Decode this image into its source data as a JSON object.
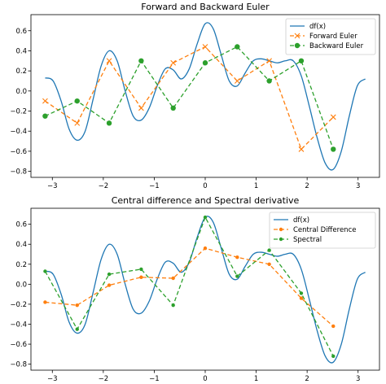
{
  "chart_data": [
    {
      "type": "line",
      "title": "Forward and Backward Euler",
      "xlabel": "",
      "ylabel": "",
      "xlim": [
        -3.42,
        3.42
      ],
      "ylim": [
        -0.86,
        0.76
      ],
      "xticks": [
        -3,
        -2,
        -1,
        0,
        1,
        2,
        3
      ],
      "yticks": [
        -0.8,
        -0.6,
        -0.4,
        -0.2,
        0.0,
        0.2,
        0.4,
        0.6
      ],
      "ytick_labels": [
        "−0.8",
        "−0.6",
        "−0.4",
        "−0.2",
        "0.0",
        "0.2",
        "0.4",
        "0.6"
      ],
      "xtick_labels": [
        "−3",
        "−2",
        "−1",
        "0",
        "1",
        "2",
        "3"
      ],
      "legend_position": "top-right",
      "grid": false,
      "series": [
        {
          "name": "df(x)",
          "color": "#1f77b4",
          "style": "solid",
          "marker": "none",
          "curve": true,
          "x": [
            -3.1416,
            -2.9845,
            -2.8274,
            -2.6704,
            -2.5133,
            -2.3562,
            -2.1991,
            -2.042,
            -1.885,
            -1.7279,
            -1.5708,
            -1.4137,
            -1.2566,
            -1.0996,
            -0.9425,
            -0.7854,
            -0.6283,
            -0.4712,
            -0.3142,
            -0.1571,
            0.0,
            0.1571,
            0.3142,
            0.4712,
            0.6283,
            0.7854,
            0.9425,
            1.0996,
            1.2566,
            1.4137,
            1.5708,
            1.7279,
            1.885,
            2.042,
            2.1991,
            2.3562,
            2.5133,
            2.6704,
            2.8274,
            2.9845,
            3.1416
          ],
          "y": [
            0.13,
            0.1,
            -0.1,
            -0.38,
            -0.49,
            -0.4,
            -0.08,
            0.25,
            0.4,
            0.3,
            0.0,
            -0.25,
            -0.29,
            -0.17,
            0.05,
            0.22,
            0.21,
            0.12,
            0.22,
            0.47,
            0.67,
            0.62,
            0.36,
            0.1,
            0.05,
            0.18,
            0.3,
            0.32,
            0.3,
            0.28,
            0.3,
            0.3,
            0.15,
            -0.15,
            -0.47,
            -0.72,
            -0.78,
            -0.6,
            -0.25,
            0.05,
            0.12
          ]
        },
        {
          "name": "Forward Euler",
          "color": "#ff7f0e",
          "style": "dashed",
          "marker": "x",
          "x": [
            -3.1416,
            -2.5133,
            -1.885,
            -1.2566,
            -0.6283,
            0.0,
            0.6283,
            1.2566,
            1.885,
            2.5133
          ],
          "y": [
            -0.1,
            -0.32,
            0.3,
            -0.17,
            0.28,
            0.44,
            0.1,
            0.3,
            -0.58,
            -0.26
          ]
        },
        {
          "name": "Backward Euler",
          "color": "#2ca02c",
          "style": "dashed",
          "marker": "circle",
          "x": [
            -3.1416,
            -2.5133,
            -1.885,
            -1.2566,
            -0.6283,
            0.0,
            0.6283,
            1.2566,
            1.885,
            2.5133
          ],
          "y": [
            -0.25,
            -0.1,
            -0.32,
            0.3,
            -0.17,
            0.28,
            0.44,
            0.1,
            0.3,
            -0.58
          ]
        }
      ]
    },
    {
      "type": "line",
      "title": "Central difference and Spectral derivative",
      "xlabel": "",
      "ylabel": "",
      "xlim": [
        -3.42,
        3.42
      ],
      "ylim": [
        -0.86,
        0.76
      ],
      "xticks": [
        -3,
        -2,
        -1,
        0,
        1,
        2,
        3
      ],
      "yticks": [
        -0.8,
        -0.6,
        -0.4,
        -0.2,
        0.0,
        0.2,
        0.4,
        0.6
      ],
      "ytick_labels": [
        "−0.8",
        "−0.6",
        "−0.4",
        "−0.2",
        "0.0",
        "0.2",
        "0.4",
        "0.6"
      ],
      "xtick_labels": [
        "−3",
        "−2",
        "−1",
        "0",
        "1",
        "2",
        "3"
      ],
      "legend_position": "top-right",
      "grid": false,
      "series": [
        {
          "name": "df(x)",
          "color": "#1f77b4",
          "style": "solid",
          "marker": "none",
          "curve": true,
          "x": [
            -3.1416,
            -2.9845,
            -2.8274,
            -2.6704,
            -2.5133,
            -2.3562,
            -2.1991,
            -2.042,
            -1.885,
            -1.7279,
            -1.5708,
            -1.4137,
            -1.2566,
            -1.0996,
            -0.9425,
            -0.7854,
            -0.6283,
            -0.4712,
            -0.3142,
            -0.1571,
            0.0,
            0.1571,
            0.3142,
            0.4712,
            0.6283,
            0.7854,
            0.9425,
            1.0996,
            1.2566,
            1.4137,
            1.5708,
            1.7279,
            1.885,
            2.042,
            2.1991,
            2.3562,
            2.5133,
            2.6704,
            2.8274,
            2.9845,
            3.1416
          ],
          "y": [
            0.13,
            0.1,
            -0.1,
            -0.38,
            -0.49,
            -0.4,
            -0.08,
            0.25,
            0.4,
            0.3,
            0.0,
            -0.25,
            -0.29,
            -0.17,
            0.05,
            0.22,
            0.21,
            0.12,
            0.22,
            0.47,
            0.67,
            0.62,
            0.36,
            0.1,
            0.05,
            0.18,
            0.3,
            0.32,
            0.3,
            0.28,
            0.3,
            0.3,
            0.15,
            -0.15,
            -0.47,
            -0.72,
            -0.78,
            -0.6,
            -0.25,
            0.05,
            0.12
          ]
        },
        {
          "name": "Central Difference",
          "color": "#ff7f0e",
          "style": "dashed",
          "marker": "circle-small",
          "x": [
            -3.1416,
            -2.5133,
            -1.885,
            -1.2566,
            -0.6283,
            0.0,
            0.6283,
            1.2566,
            1.885,
            2.5133
          ],
          "y": [
            -0.18,
            -0.21,
            -0.01,
            0.07,
            0.06,
            0.36,
            0.27,
            0.2,
            -0.14,
            -0.42
          ]
        },
        {
          "name": "Spectral",
          "color": "#2ca02c",
          "style": "dashed",
          "marker": "circle-small",
          "x": [
            -3.1416,
            -2.5133,
            -1.885,
            -1.2566,
            -0.6283,
            0.0,
            0.6283,
            1.2566,
            1.885,
            2.5133
          ],
          "y": [
            0.13,
            -0.45,
            0.1,
            0.15,
            -0.21,
            0.67,
            0.08,
            0.34,
            -0.09,
            -0.72
          ]
        }
      ]
    }
  ]
}
